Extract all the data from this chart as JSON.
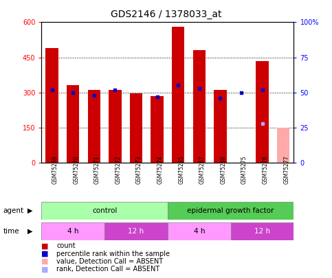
{
  "title": "GDS2146 / 1378033_at",
  "samples": [
    "GSM75269",
    "GSM75270",
    "GSM75271",
    "GSM75272",
    "GSM75273",
    "GSM75274",
    "GSM75265",
    "GSM75267",
    "GSM75268",
    "GSM75275",
    "GSM75276",
    "GSM75277"
  ],
  "count_values": [
    490,
    330,
    310,
    310,
    295,
    285,
    580,
    480,
    310,
    null,
    435,
    150
  ],
  "count_absent": [
    false,
    false,
    false,
    false,
    false,
    false,
    false,
    false,
    false,
    true,
    false,
    true
  ],
  "percentile_values": [
    52,
    50,
    48,
    52,
    null,
    47,
    55,
    53,
    46,
    50,
    52,
    null
  ],
  "rank_absent_value": 28,
  "rank_absent_col": 10,
  "ylim_left": [
    0,
    600
  ],
  "ylim_right": [
    0,
    100
  ],
  "yticks_left": [
    0,
    150,
    300,
    450,
    600
  ],
  "ytick_labels_left": [
    "0",
    "150",
    "300",
    "450",
    "600"
  ],
  "yticks_right": [
    0,
    25,
    50,
    75,
    100
  ],
  "ytick_labels_right": [
    "0",
    "25",
    "50",
    "75",
    "100%"
  ],
  "bar_color_normal": "#cc0000",
  "bar_color_absent": "#ffaaaa",
  "dot_color_normal": "#0000cc",
  "dot_color_absent": "#aaaaff",
  "agent_control_label": "control",
  "agent_egf_label": "epidermal growth factor",
  "agent_color": "#aaffaa",
  "time_groups": [
    {
      "label": "4 h",
      "start": 0,
      "end": 3,
      "color": "#ff99ff"
    },
    {
      "label": "12 h",
      "start": 3,
      "end": 6,
      "color": "#cc44cc"
    },
    {
      "label": "4 h",
      "start": 6,
      "end": 9,
      "color": "#ff99ff"
    },
    {
      "label": "12 h",
      "start": 9,
      "end": 12,
      "color": "#cc44cc"
    }
  ],
  "legend_items": [
    {
      "label": "count",
      "color": "#cc0000"
    },
    {
      "label": "percentile rank within the sample",
      "color": "#0000cc"
    },
    {
      "label": "value, Detection Call = ABSENT",
      "color": "#ffaaaa"
    },
    {
      "label": "rank, Detection Call = ABSENT",
      "color": "#aaaaff"
    }
  ],
  "background_color": "#ffffff"
}
